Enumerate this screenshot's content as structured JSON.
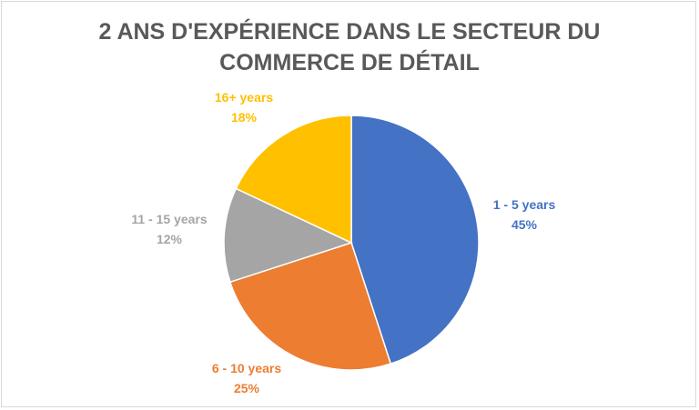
{
  "chart_data": {
    "type": "pie",
    "title_lines": [
      "2 ANS D'EXPÉRIENCE DANS LE SECTEUR DU",
      "COMMERCE DE DÉTAIL"
    ],
    "slices": [
      {
        "label": "1 - 5 years",
        "value": 45,
        "value_label": "45%",
        "color": "#4472C4"
      },
      {
        "label": "6 - 10 years",
        "value": 25,
        "value_label": "25%",
        "color": "#ED7D31"
      },
      {
        "label": "11 - 15 years",
        "value": 12,
        "value_label": "12%",
        "color": "#A5A5A5"
      },
      {
        "label": "16+ years",
        "value": 18,
        "value_label": "18%",
        "color": "#FFC000"
      }
    ],
    "start_angle": "12 o'clock",
    "direction": "clockwise",
    "legend": "none",
    "labels_outside": true
  }
}
